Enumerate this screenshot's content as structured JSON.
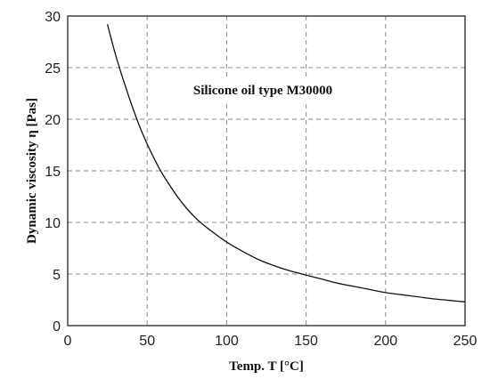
{
  "chart_data": {
    "type": "line",
    "title": "",
    "xlabel": "Temp. T [°C]",
    "ylabel": "Dynamic viscosity η [Pas]",
    "annotation": "Silicone oil type M30000",
    "xlim": [
      0,
      250
    ],
    "ylim": [
      0,
      30
    ],
    "xticks": [
      "0",
      "50",
      "100",
      "150",
      "200",
      "250"
    ],
    "yticks": [
      "0",
      "5",
      "10",
      "15",
      "20",
      "25",
      "30"
    ],
    "grid": true,
    "series": [
      {
        "x": [
          25,
          30,
          35,
          40,
          45,
          50,
          55,
          60,
          70,
          80,
          90,
          100,
          110,
          120,
          130,
          140,
          150,
          160,
          170,
          180,
          190,
          200,
          210,
          220,
          230,
          240,
          250
        ],
        "values": [
          29.2,
          26.3,
          23.8,
          21.5,
          19.4,
          17.6,
          16.0,
          14.6,
          12.3,
          10.5,
          9.2,
          8.1,
          7.2,
          6.4,
          5.8,
          5.3,
          4.9,
          4.5,
          4.1,
          3.8,
          3.5,
          3.2,
          3.0,
          2.8,
          2.6,
          2.45,
          2.3
        ]
      }
    ]
  }
}
